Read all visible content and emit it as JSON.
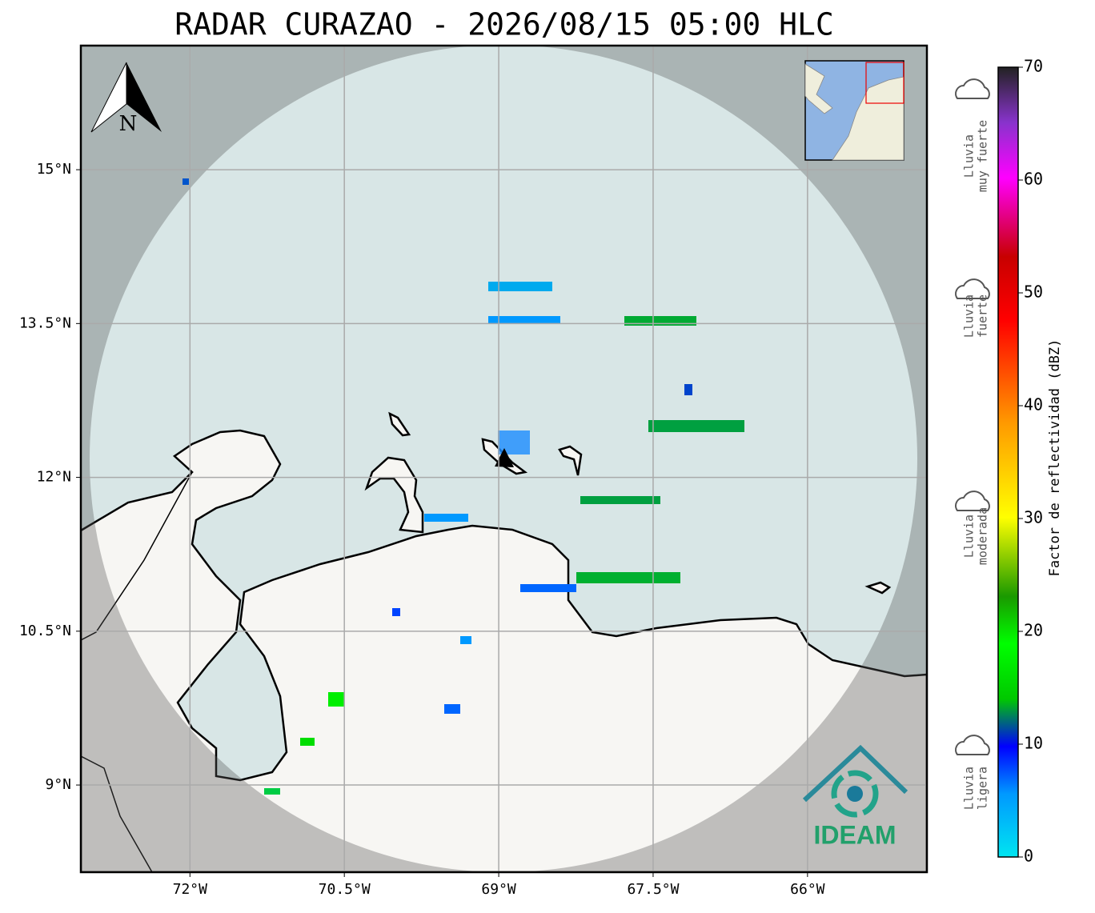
{
  "title": "RADAR CURAZAO - 2026/08/15 05:00 HLC",
  "map": {
    "xlim": [
      -73.06,
      -64.84
    ],
    "ylim": [
      8.15,
      16.21
    ],
    "xticks": [
      {
        "value": -72,
        "label": "72°W"
      },
      {
        "value": -70.5,
        "label": "70.5°W"
      },
      {
        "value": -69,
        "label": "69°W"
      },
      {
        "value": -67.5,
        "label": "67.5°W"
      },
      {
        "value": -66,
        "label": "66°W"
      }
    ],
    "yticks": [
      {
        "value": 15,
        "label": "15°N"
      },
      {
        "value": 13.5,
        "label": "13.5°N"
      },
      {
        "value": 12,
        "label": "12°N"
      },
      {
        "value": 10.5,
        "label": "10.5°N"
      },
      {
        "value": 9,
        "label": "9°N"
      }
    ],
    "grid": true
  },
  "compass": "N",
  "logo": "IDEAM",
  "colorbar": {
    "label": "Factor de reflectividad (dBZ)",
    "lim": [
      0,
      70
    ],
    "ticks": [
      0,
      10,
      20,
      30,
      40,
      50,
      60,
      70
    ]
  },
  "rain_legend": [
    {
      "lines": [
        "Lluvia",
        "muy fuerte"
      ]
    },
    {
      "lines": [
        "Lluvia",
        "fuerte"
      ]
    },
    {
      "lines": [
        "Lluvia",
        "moderada"
      ]
    },
    {
      "lines": [
        "Lluvia",
        "ligera"
      ]
    }
  ]
}
